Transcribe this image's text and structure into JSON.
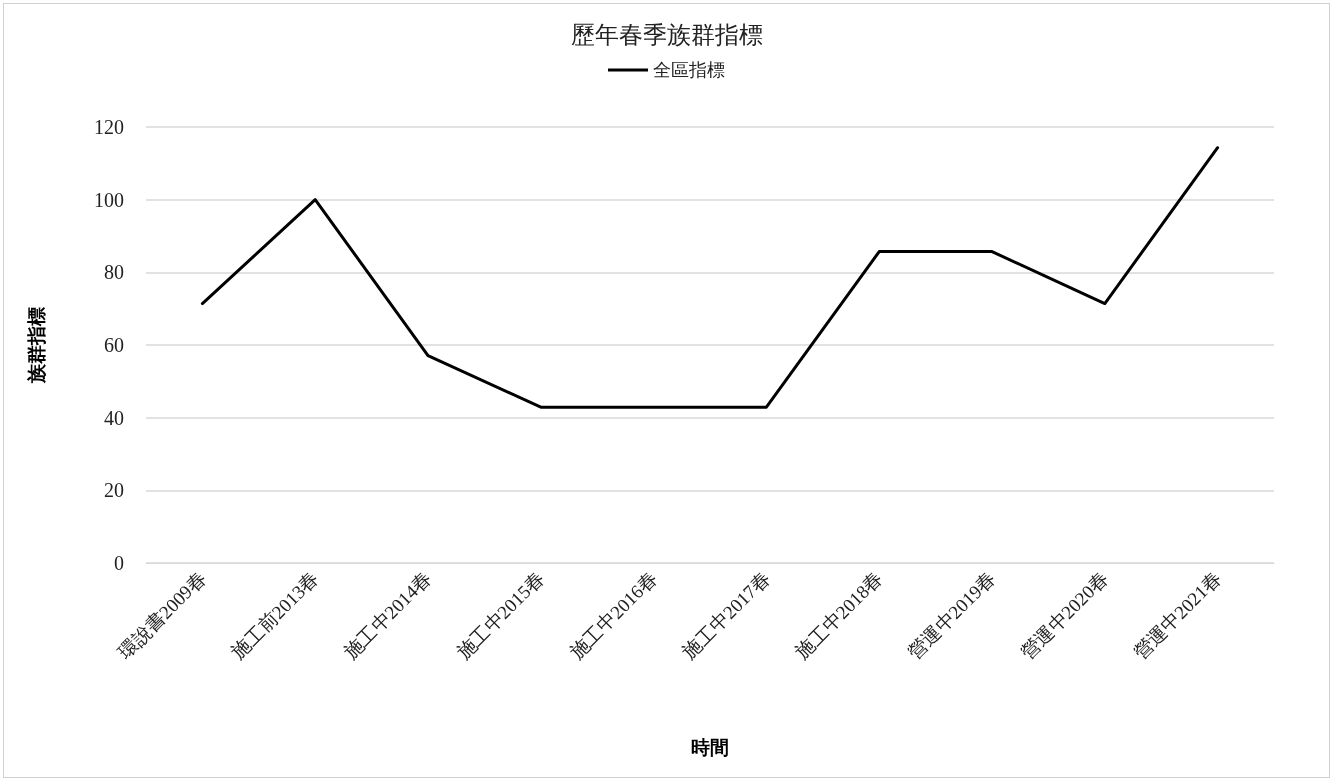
{
  "chart_data": {
    "type": "line",
    "title": "歷年春季族群指標",
    "xlabel": "時間",
    "ylabel": "族群指標",
    "categories": [
      "環說書2009春",
      "施工前2013春",
      "施工中2014春",
      "施工中2015春",
      "施工中2016春",
      "施工中2017春",
      "施工中2018春",
      "營運中2019春",
      "營運中2020春",
      "營運中2021春"
    ],
    "series": [
      {
        "name": "全區指標",
        "color": "#000000",
        "values": [
          71.4,
          100,
          57.1,
          42.9,
          42.9,
          42.9,
          85.7,
          85.7,
          71.4,
          114.3
        ]
      }
    ],
    "ylim": [
      0,
      120
    ],
    "yticks": [
      0,
      20,
      40,
      60,
      80,
      100,
      120
    ],
    "grid": "y",
    "legend": "top",
    "marker": "none",
    "line_style": "solid"
  }
}
